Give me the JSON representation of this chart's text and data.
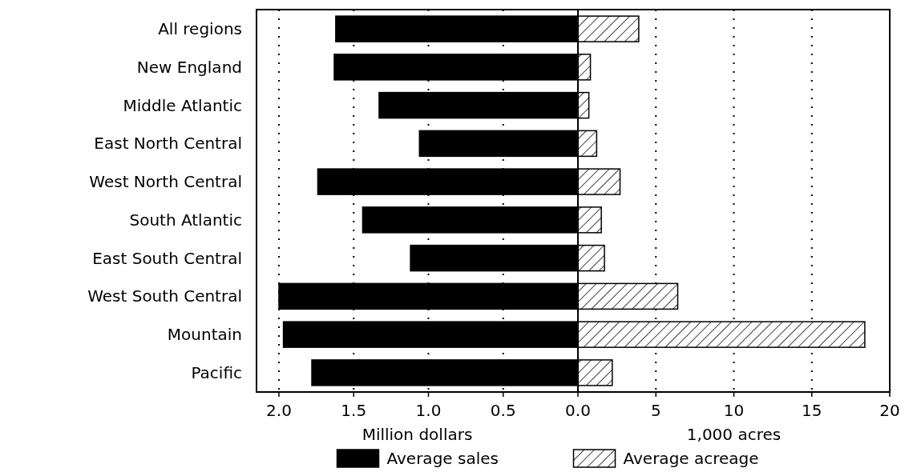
{
  "chart_data": [
    {
      "type": "bar",
      "orientation": "horizontal",
      "categories": [
        "All regions",
        "New England",
        "Middle Atlantic",
        "East North Central",
        "West North Central",
        "South Atlantic",
        "East South Central",
        "West South Central",
        "Mountain",
        "Pacific"
      ],
      "series": [
        {
          "name": "Average sales",
          "color": "#000000",
          "values": [
            1.62,
            1.63,
            1.33,
            1.06,
            1.74,
            1.44,
            1.12,
            2.0,
            1.97,
            1.78
          ]
        }
      ],
      "xlim": [
        2.15,
        0
      ],
      "xticks": [
        {
          "value": 2,
          "label": "2.0"
        },
        1.5,
        {
          "value": 1,
          "label": "1.0"
        },
        0.5,
        {
          "value": 0,
          "label": "0.0"
        }
      ],
      "xlabel": "Million dollars",
      "grid": "x",
      "legend": "bottom"
    },
    {
      "type": "bar",
      "orientation": "horizontal",
      "categories": [
        null,
        null,
        null,
        null,
        null,
        null,
        null,
        null,
        null,
        null
      ],
      "series": [
        {
          "name": "Average acreage",
          "color": "#000000",
          "values": [
            3.9,
            0.8,
            0.7,
            1.2,
            2.7,
            1.5,
            1.7,
            6.4,
            18.4,
            2.2
          ]
        }
      ],
      "xlim": [
        0,
        20
      ],
      "xticks": [
        5,
        10,
        15,
        20
      ],
      "xlabel": "1,000 acres",
      "grid": "x",
      "legend": "bottom",
      "tick_labels": "x"
    }
  ]
}
